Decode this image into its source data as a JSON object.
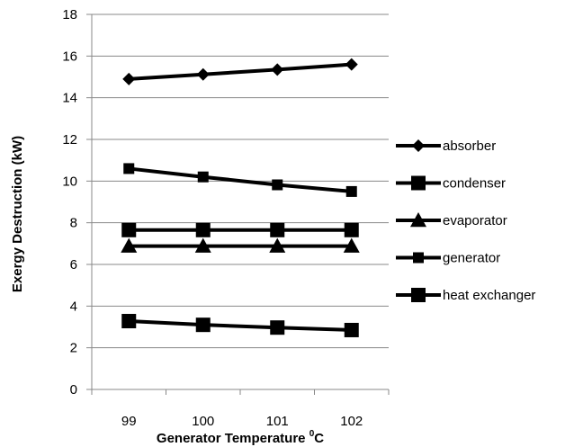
{
  "chart_data": {
    "type": "line",
    "title": "",
    "xlabel": "Generator Temperature ",
    "xlabel_sup": "0",
    "xlabel_unit": "C",
    "ylabel": "Exergy Destruction (kW)",
    "categories": [
      "99",
      "100",
      "101",
      "102"
    ],
    "ylim": [
      0,
      18
    ],
    "yticks": [
      0,
      2,
      4,
      6,
      8,
      10,
      12,
      14,
      16,
      18
    ],
    "grid": true,
    "legend_position": "right",
    "line_color": "#000000",
    "grid_color": "#888888",
    "series": [
      {
        "name": "absorber",
        "marker": "diamond",
        "values": [
          14.9,
          15.12,
          15.35,
          15.6
        ]
      },
      {
        "name": "condenser",
        "marker": "square",
        "values": [
          7.65,
          7.65,
          7.65,
          7.65
        ]
      },
      {
        "name": "evaporator",
        "marker": "triangle",
        "values": [
          6.88,
          6.88,
          6.88,
          6.88
        ]
      },
      {
        "name": "generator",
        "marker": "square-small",
        "values": [
          10.6,
          10.2,
          9.82,
          9.5
        ]
      },
      {
        "name": "heat exchanger",
        "marker": "square",
        "values": [
          3.28,
          3.1,
          2.97,
          2.85
        ]
      }
    ]
  }
}
